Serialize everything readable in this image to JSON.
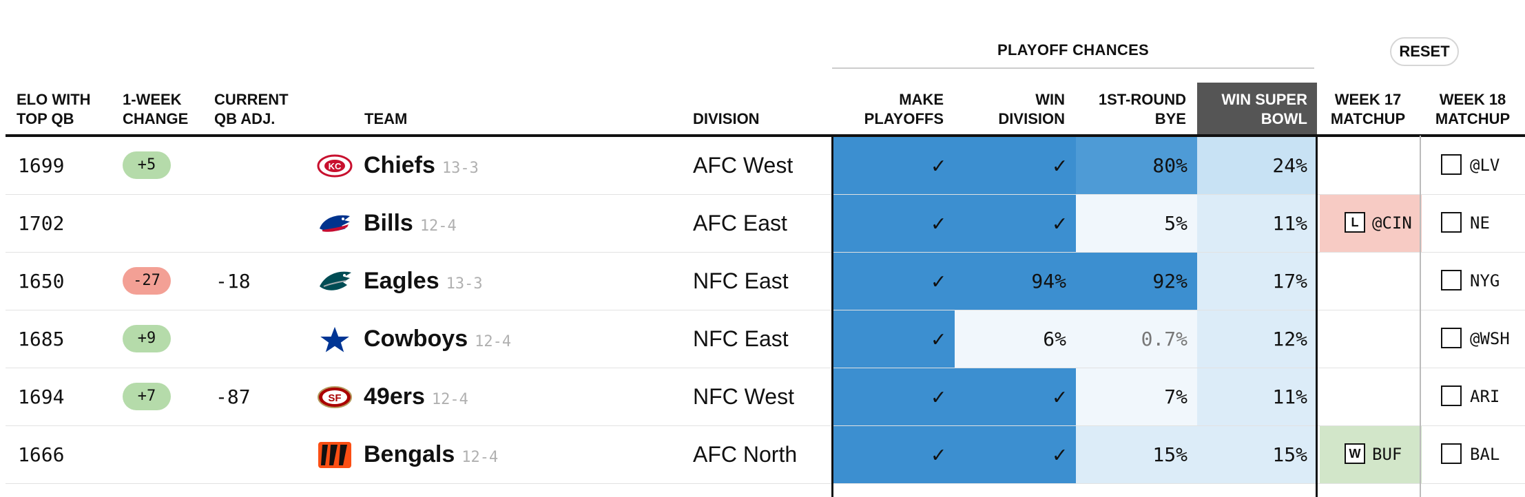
{
  "header": {
    "playoff_chances": "PLAYOFF CHANCES",
    "reset": "RESET",
    "columns": {
      "elo_l1": "ELO WITH",
      "elo_l2": "TOP QB",
      "chg_l1": "1-WEEK",
      "chg_l2": "CHANGE",
      "qb_l1": "CURRENT",
      "qb_l2": "QB ADJ.",
      "team": "TEAM",
      "division": "DIVISION",
      "make_l1": "MAKE",
      "make_l2": "PLAYOFFS",
      "windiv_l1": "WIN",
      "windiv_l2": "DIVISION",
      "bye_l1": "1ST-ROUND",
      "bye_l2": "BYE",
      "sb_l1": "WIN SUPER",
      "sb_l2": "BOWL",
      "w17_l1": "WEEK 17",
      "w17_l2": "MATCHUP",
      "w18_l1": "WEEK 18",
      "w18_l2": "MATCHUP"
    }
  },
  "colors": {
    "check_cell": "#3c8fd0",
    "high_prob": "#3c8fd0",
    "mid_prob": "#4e9bd6",
    "low_prob": "#c8e2f4",
    "lighter_prob": "#dcecf8",
    "faint_prob": "#f1f7fc",
    "loss_bg": "#f7cbc4",
    "win_bg": "#d2e6c9",
    "positive_change": "#b5dbaa",
    "negative_change": "#f3a095"
  },
  "rows": [
    {
      "elo": "1699",
      "change": "+5",
      "change_sign": "pos",
      "qb_adj": "",
      "team": "Chiefs",
      "record": "13-3",
      "logo": "chiefs-logo",
      "division": "AFC West",
      "make_playoffs": "✓",
      "win_division": "✓",
      "bye": "80%",
      "super_bowl": "24%",
      "w17": {
        "result": "",
        "opp": ""
      },
      "w18": "@LV"
    },
    {
      "elo": "1702",
      "change": "",
      "change_sign": "",
      "qb_adj": "",
      "team": "Bills",
      "record": "12-4",
      "logo": "bills-logo",
      "division": "AFC East",
      "make_playoffs": "✓",
      "win_division": "✓",
      "bye": "5%",
      "super_bowl": "11%",
      "w17": {
        "result": "L",
        "opp": "@CIN"
      },
      "w18": "NE"
    },
    {
      "elo": "1650",
      "change": "-27",
      "change_sign": "neg",
      "qb_adj": "-18",
      "team": "Eagles",
      "record": "13-3",
      "logo": "eagles-logo",
      "division": "NFC East",
      "make_playoffs": "✓",
      "win_division": "94%",
      "bye": "92%",
      "super_bowl": "17%",
      "w17": {
        "result": "",
        "opp": ""
      },
      "w18": "NYG"
    },
    {
      "elo": "1685",
      "change": "+9",
      "change_sign": "pos",
      "qb_adj": "",
      "team": "Cowboys",
      "record": "12-4",
      "logo": "cowboys-logo",
      "division": "NFC East",
      "make_playoffs": "✓",
      "win_division": "6%",
      "bye": "0.7%",
      "super_bowl": "12%",
      "w17": {
        "result": "",
        "opp": ""
      },
      "w18": "@WSH"
    },
    {
      "elo": "1694",
      "change": "+7",
      "change_sign": "pos",
      "qb_adj": "-87",
      "team": "49ers",
      "record": "12-4",
      "logo": "49ers-logo",
      "division": "NFC West",
      "make_playoffs": "✓",
      "win_division": "✓",
      "bye": "7%",
      "super_bowl": "11%",
      "w17": {
        "result": "",
        "opp": ""
      },
      "w18": "ARI"
    },
    {
      "elo": "1666",
      "change": "",
      "change_sign": "",
      "qb_adj": "",
      "team": "Bengals",
      "record": "12-4",
      "logo": "bengals-logo",
      "division": "AFC North",
      "make_playoffs": "✓",
      "win_division": "✓",
      "bye": "15%",
      "super_bowl": "15%",
      "w17": {
        "result": "W",
        "opp": "BUF"
      },
      "w18": "BAL"
    }
  ]
}
